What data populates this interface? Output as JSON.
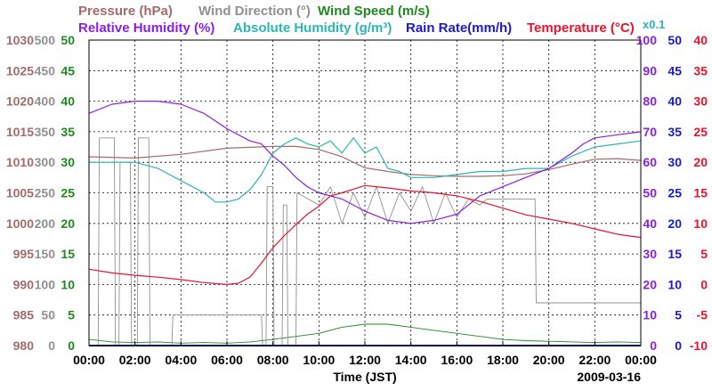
{
  "chart_data": {
    "type": "line",
    "legend": {
      "row1": [
        {
          "key": "pressure",
          "text": "Pressure (hPa)",
          "color": "#a56a6a"
        },
        {
          "key": "wind_dir",
          "text": "Wind Direction (°)",
          "color": "#909090"
        },
        {
          "key": "wind_speed",
          "text": "Wind Speed (m/s)",
          "color": "#1e8a1e"
        }
      ],
      "row2": [
        {
          "key": "rh",
          "text": "Relative Humidity (%)",
          "color": "#8a1ee6"
        },
        {
          "key": "ah",
          "text": "Absolute Humidity (g/m³)",
          "color": "#2bb5b5"
        },
        {
          "key": "rain",
          "text": "Rain Rate(mm/h)",
          "color": "#1a1acc"
        },
        {
          "key": "temp",
          "text": "Temperature (°C)",
          "color": "#e6142d"
        }
      ],
      "ah_scale_note": "x0.1"
    },
    "xaxis": {
      "label": "Time (JST)",
      "date": "2009-03-16",
      "range": [
        0,
        24
      ],
      "ticks": [
        "00:00",
        "02:00",
        "04:00",
        "06:00",
        "08:00",
        "10:00",
        "12:00",
        "14:00",
        "16:00",
        "18:00",
        "20:00",
        "22:00",
        "00:00"
      ]
    },
    "axes": {
      "pressure": {
        "range": [
          980,
          1030
        ],
        "ticks": [
          "980",
          "985",
          "990",
          "995",
          "1000",
          "1005",
          "1010",
          "1015",
          "1020",
          "1025",
          "1030"
        ]
      },
      "wind_dir": {
        "range": [
          0,
          500
        ],
        "ticks": [
          "0",
          "50",
          "100",
          "150",
          "200",
          "250",
          "300",
          "350",
          "400",
          "450",
          "500"
        ]
      },
      "wind_speed": {
        "range": [
          0,
          50
        ],
        "ticks": [
          "0",
          "5",
          "10",
          "15",
          "20",
          "25",
          "30",
          "35",
          "40",
          "45",
          "50"
        ]
      },
      "rh": {
        "range": [
          0,
          100
        ],
        "ticks": [
          "0",
          "10",
          "20",
          "30",
          "40",
          "50",
          "60",
          "70",
          "80",
          "90",
          "100"
        ]
      },
      "rain": {
        "range": [
          0,
          50
        ],
        "ticks": [
          "0",
          "5",
          "10",
          "15",
          "20",
          "25",
          "30",
          "35",
          "40",
          "45",
          "50"
        ]
      },
      "temp": {
        "range": [
          -10,
          40
        ],
        "ticks": [
          "-10",
          "-5",
          "0",
          "5",
          "10",
          "15",
          "20",
          "25",
          "30",
          "35",
          "40"
        ]
      }
    },
    "grid": true,
    "series": [
      {
        "key": "pressure",
        "name": "Pressure (hPa)",
        "axis": "pressure",
        "color": "#a56a6a",
        "x": [
          0,
          2,
          4,
          6,
          8,
          9,
          10,
          11,
          12,
          13,
          14,
          15,
          16,
          17,
          18,
          19,
          20,
          21,
          22,
          23,
          24
        ],
        "y": [
          1010.9,
          1010.7,
          1011.3,
          1012.3,
          1012.6,
          1012.6,
          1012.1,
          1010.9,
          1009.1,
          1008.5,
          1008.0,
          1007.8,
          1007.7,
          1007.7,
          1007.8,
          1008.1,
          1008.8,
          1009.7,
          1010.5,
          1010.6,
          1010.3
        ]
      },
      {
        "key": "rh",
        "name": "Relative Humidity (%)",
        "axis": "rh",
        "color": "#8a1ee6",
        "x": [
          0,
          1,
          2,
          3,
          4,
          5,
          6,
          7,
          7.5,
          8,
          8.5,
          9,
          9.5,
          10,
          11,
          12,
          13,
          14,
          15,
          16,
          16.5,
          17,
          18,
          19,
          20,
          21,
          21.5,
          22,
          23,
          24
        ],
        "y": [
          76,
          79,
          80,
          80,
          79,
          76,
          71,
          67,
          66,
          62,
          59,
          55,
          52,
          50,
          48,
          44,
          41,
          40,
          41,
          43,
          46,
          49,
          52,
          55,
          58,
          63,
          66,
          68,
          69,
          70
        ]
      },
      {
        "key": "ah",
        "name": "Absolute Humidity (g/m³)",
        "axis": "rh",
        "color": "#2bb5b5",
        "x": [
          0,
          1,
          2,
          3,
          4,
          5,
          5.5,
          6,
          6.5,
          7,
          7.5,
          8,
          8.5,
          9,
          9.5,
          10,
          10.5,
          11,
          11.5,
          12,
          12.5,
          13,
          13.5,
          14,
          15,
          16,
          17,
          18,
          19,
          20,
          21,
          22,
          23,
          24
        ],
        "y": [
          60,
          60,
          60,
          58,
          54,
          50,
          47,
          47,
          48,
          51,
          56,
          63,
          66,
          68,
          66,
          65,
          67,
          63,
          68,
          63,
          65,
          58,
          57,
          55,
          55,
          56,
          57,
          57,
          58,
          58,
          62,
          65,
          66,
          67
        ]
      },
      {
        "key": "temp",
        "name": "Temperature (°C)",
        "axis": "temp",
        "color": "#e6142d",
        "x": [
          0,
          1,
          2,
          3,
          4,
          5,
          6,
          6.5,
          7,
          7.5,
          8,
          8.5,
          9,
          9.5,
          10,
          10.5,
          11,
          11.5,
          12,
          13,
          14,
          15,
          16,
          17,
          18,
          19,
          20,
          21,
          22,
          23,
          24
        ],
        "y": [
          2.5,
          1.9,
          1.5,
          1.2,
          0.8,
          0.3,
          0.0,
          0.2,
          1.2,
          3.5,
          6.0,
          8.0,
          9.8,
          11.5,
          12.8,
          14.5,
          15.0,
          15.6,
          16.2,
          15.8,
          15.3,
          15.0,
          14.5,
          13.6,
          12.5,
          11.4,
          10.7,
          10.0,
          9.1,
          8.2,
          7.7
        ]
      },
      {
        "key": "wind_dir",
        "name": "Wind Direction (°)",
        "axis": "wind_dir",
        "color": "#909090",
        "x": [
          0,
          0.4,
          0.45,
          1.1,
          1.15,
          1.3,
          1.35,
          1.8,
          1.85,
          2.1,
          2.15,
          2.6,
          2.65,
          3.6,
          3.65,
          7.5,
          7.55,
          7.7,
          7.75,
          8.0,
          8.05,
          8.4,
          8.45,
          8.6,
          8.65,
          9.0,
          9.05,
          10.0,
          10.5,
          11.0,
          11.5,
          12.0,
          12.5,
          13.0,
          13.5,
          14.0,
          14.5,
          15.0,
          15.5,
          16.0,
          16.5,
          17.0,
          17.3,
          17.35,
          19.4,
          19.45,
          24
        ],
        "y": [
          0,
          0,
          340,
          340,
          0,
          0,
          300,
          300,
          0,
          0,
          340,
          340,
          0,
          0,
          50,
          50,
          0,
          0,
          260,
          260,
          0,
          0,
          230,
          230,
          0,
          0,
          250,
          230,
          260,
          200,
          250,
          210,
          260,
          200,
          250,
          220,
          260,
          200,
          250,
          210,
          240,
          230,
          240,
          240,
          240,
          70,
          70
        ]
      },
      {
        "key": "wind_speed",
        "name": "Wind Speed (m/s)",
        "axis": "wind_speed",
        "color": "#1e8a1e",
        "x": [
          0,
          1,
          2,
          3,
          4,
          5,
          6,
          7,
          8,
          9,
          10,
          11,
          12,
          13,
          14,
          15,
          16,
          17,
          18,
          19,
          20,
          21,
          22,
          23,
          24
        ],
        "y": [
          1,
          0.6,
          0.5,
          0.6,
          0.4,
          0.5,
          0.4,
          0.6,
          1,
          1.5,
          2,
          3,
          3.5,
          3.5,
          3,
          2.5,
          2,
          1.5,
          1,
          0.8,
          0.7,
          0.6,
          0.5,
          0.6,
          0.5
        ]
      },
      {
        "key": "rain",
        "name": "Rain Rate(mm/h)",
        "axis": "rain",
        "color": "#1a1acc",
        "x": [
          0,
          24
        ],
        "y": [
          0,
          0
        ]
      }
    ]
  }
}
